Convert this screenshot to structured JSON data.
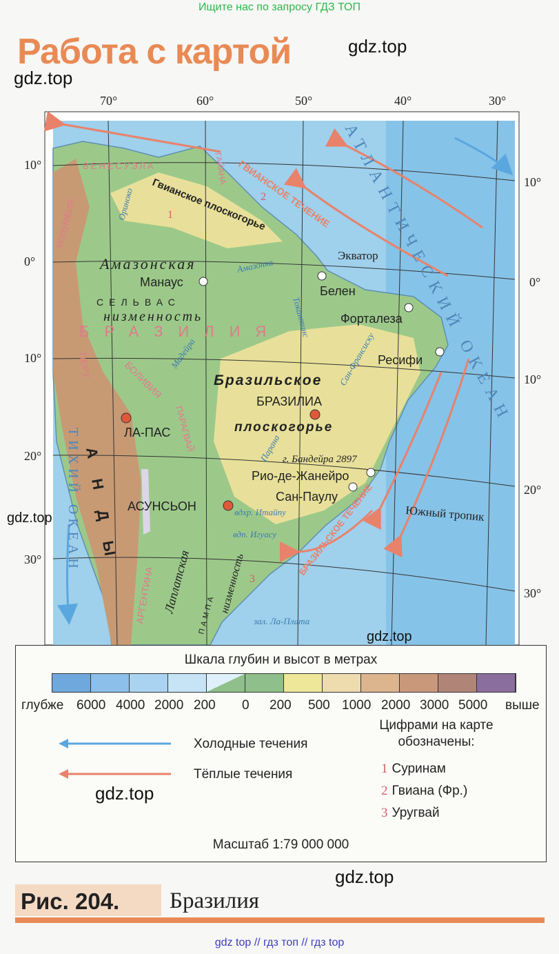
{
  "top_link": "Ищите нас по запросу ГДЗ ТОП",
  "heading": "Работа с картой",
  "watermark": "gdz.top",
  "longitudes": [
    "70°",
    "60°",
    "50°",
    "40°",
    "30°"
  ],
  "latitudes_left": [
    "10°",
    "0°",
    "10°",
    "20°",
    "30°"
  ],
  "latitudes_right": [
    "10°",
    "0°",
    "10°",
    "20°",
    "30°"
  ],
  "colors": {
    "ocean": "#9fd0ec",
    "deep_ocean": "#7fbde6",
    "lowland": "#9cc98a",
    "upland": "#e8e09a",
    "mountain": "#c79a74",
    "warm_current": "#e8826a",
    "cold_current": "#5aa7e0",
    "city": "#e0583a"
  },
  "map_labels": {
    "atlantic": "АТЛАНТИЧЕСКИЙ ОКЕАН",
    "pacific": "ТИХИЙ ОКЕАН",
    "guiana_current": "ГВИАНСКОЕ ТЕЧЕНИЕ",
    "brazil_current": "БРАЗИЛЬСКОЕ ТЕЧЕНИЕ",
    "equator": "Экватор",
    "tropic": "Южный тропик",
    "guiana_highlands": "Гвианское плоскогорье",
    "amazon_lowland_1": "Амазонская",
    "amazon_lowland_2": "низменность",
    "selva": "СЕЛЬВАС",
    "brazil_highlands_1": "Бразильское",
    "brazil_highlands_2": "плоскогорье",
    "laplata_1": "Лаплатская",
    "laplata_2": "низменность",
    "pampa": "ПАМПА",
    "country_brazil": "БРАЗИЛИЯ",
    "country_venezuela": "ВЕНЕСУЭЛА",
    "country_colombia": "КОЛУМБИЯ",
    "country_bolivia": "БОЛИВИЯ",
    "country_peru": "ПЕРУ",
    "country_paraguay": "ПАРАГВАЙ",
    "country_guyana": "ГАЙАНА",
    "country_argentina": "АРГЕНТИНА",
    "andes": "АНДЫ",
    "river_amazon": "Амазонка",
    "river_madeira": "Мадейра",
    "river_parana": "Парана",
    "river_orinoco": "Ориноко",
    "river_tocantins": "Токантинс",
    "river_sao_francisco": "Сан-Франсиску",
    "waterfall_itaipu": "вдхр. Итайпу",
    "waterfall_iguazu": "вдп. Игуасу",
    "peak": "г. Бандейра 2897",
    "bay": "зал. Ла-Плата",
    "num_1": "1",
    "num_2": "2",
    "num_3": "3"
  },
  "cities": [
    {
      "name": "Манаус",
      "capital": false
    },
    {
      "name": "Белен",
      "capital": false
    },
    {
      "name": "Форталеза",
      "capital": false
    },
    {
      "name": "Ресифи",
      "capital": false
    },
    {
      "name": "БРАЗИЛИА",
      "capital": true
    },
    {
      "name": "ЛА-ПАС",
      "capital": true
    },
    {
      "name": "АСУНСЬОН",
      "capital": true
    },
    {
      "name": "Рио-де-Жанейро",
      "capital": false
    },
    {
      "name": "Сан-Паулу",
      "capital": false
    }
  ],
  "legend": {
    "title": "Шкала глубин и высот в метрах",
    "scale_colors": [
      "#6fa8dc",
      "#8cc0ea",
      "#a9d3f0",
      "#c6e4f6",
      "#dff0fa",
      "#8fbf8a",
      "#eee79a",
      "#eedcae",
      "#dcb58f",
      "#c9987b",
      "#b08578",
      "#8a6e9e"
    ],
    "scale_labels": [
      "глубже",
      "6000",
      "4000",
      "2000",
      "200",
      "0",
      "200",
      "500",
      "1000",
      "2000",
      "3000",
      "5000",
      "выше"
    ],
    "cold_currents": "Холодные течения",
    "warm_currents": "Тёплые течения",
    "numbers_title": "Цифрами на карте обозначены:",
    "numbered": [
      {
        "n": "1",
        "name": "Суринам"
      },
      {
        "n": "2",
        "name": "Гвиана (Фр.)"
      },
      {
        "n": "3",
        "name": "Уругвай"
      }
    ],
    "scale": "Масштаб 1:79 000 000"
  },
  "caption": {
    "number": "Рис. 204.",
    "title": "Бразилия"
  },
  "bottom_link": "gdz top // гдз топ // гдз top"
}
